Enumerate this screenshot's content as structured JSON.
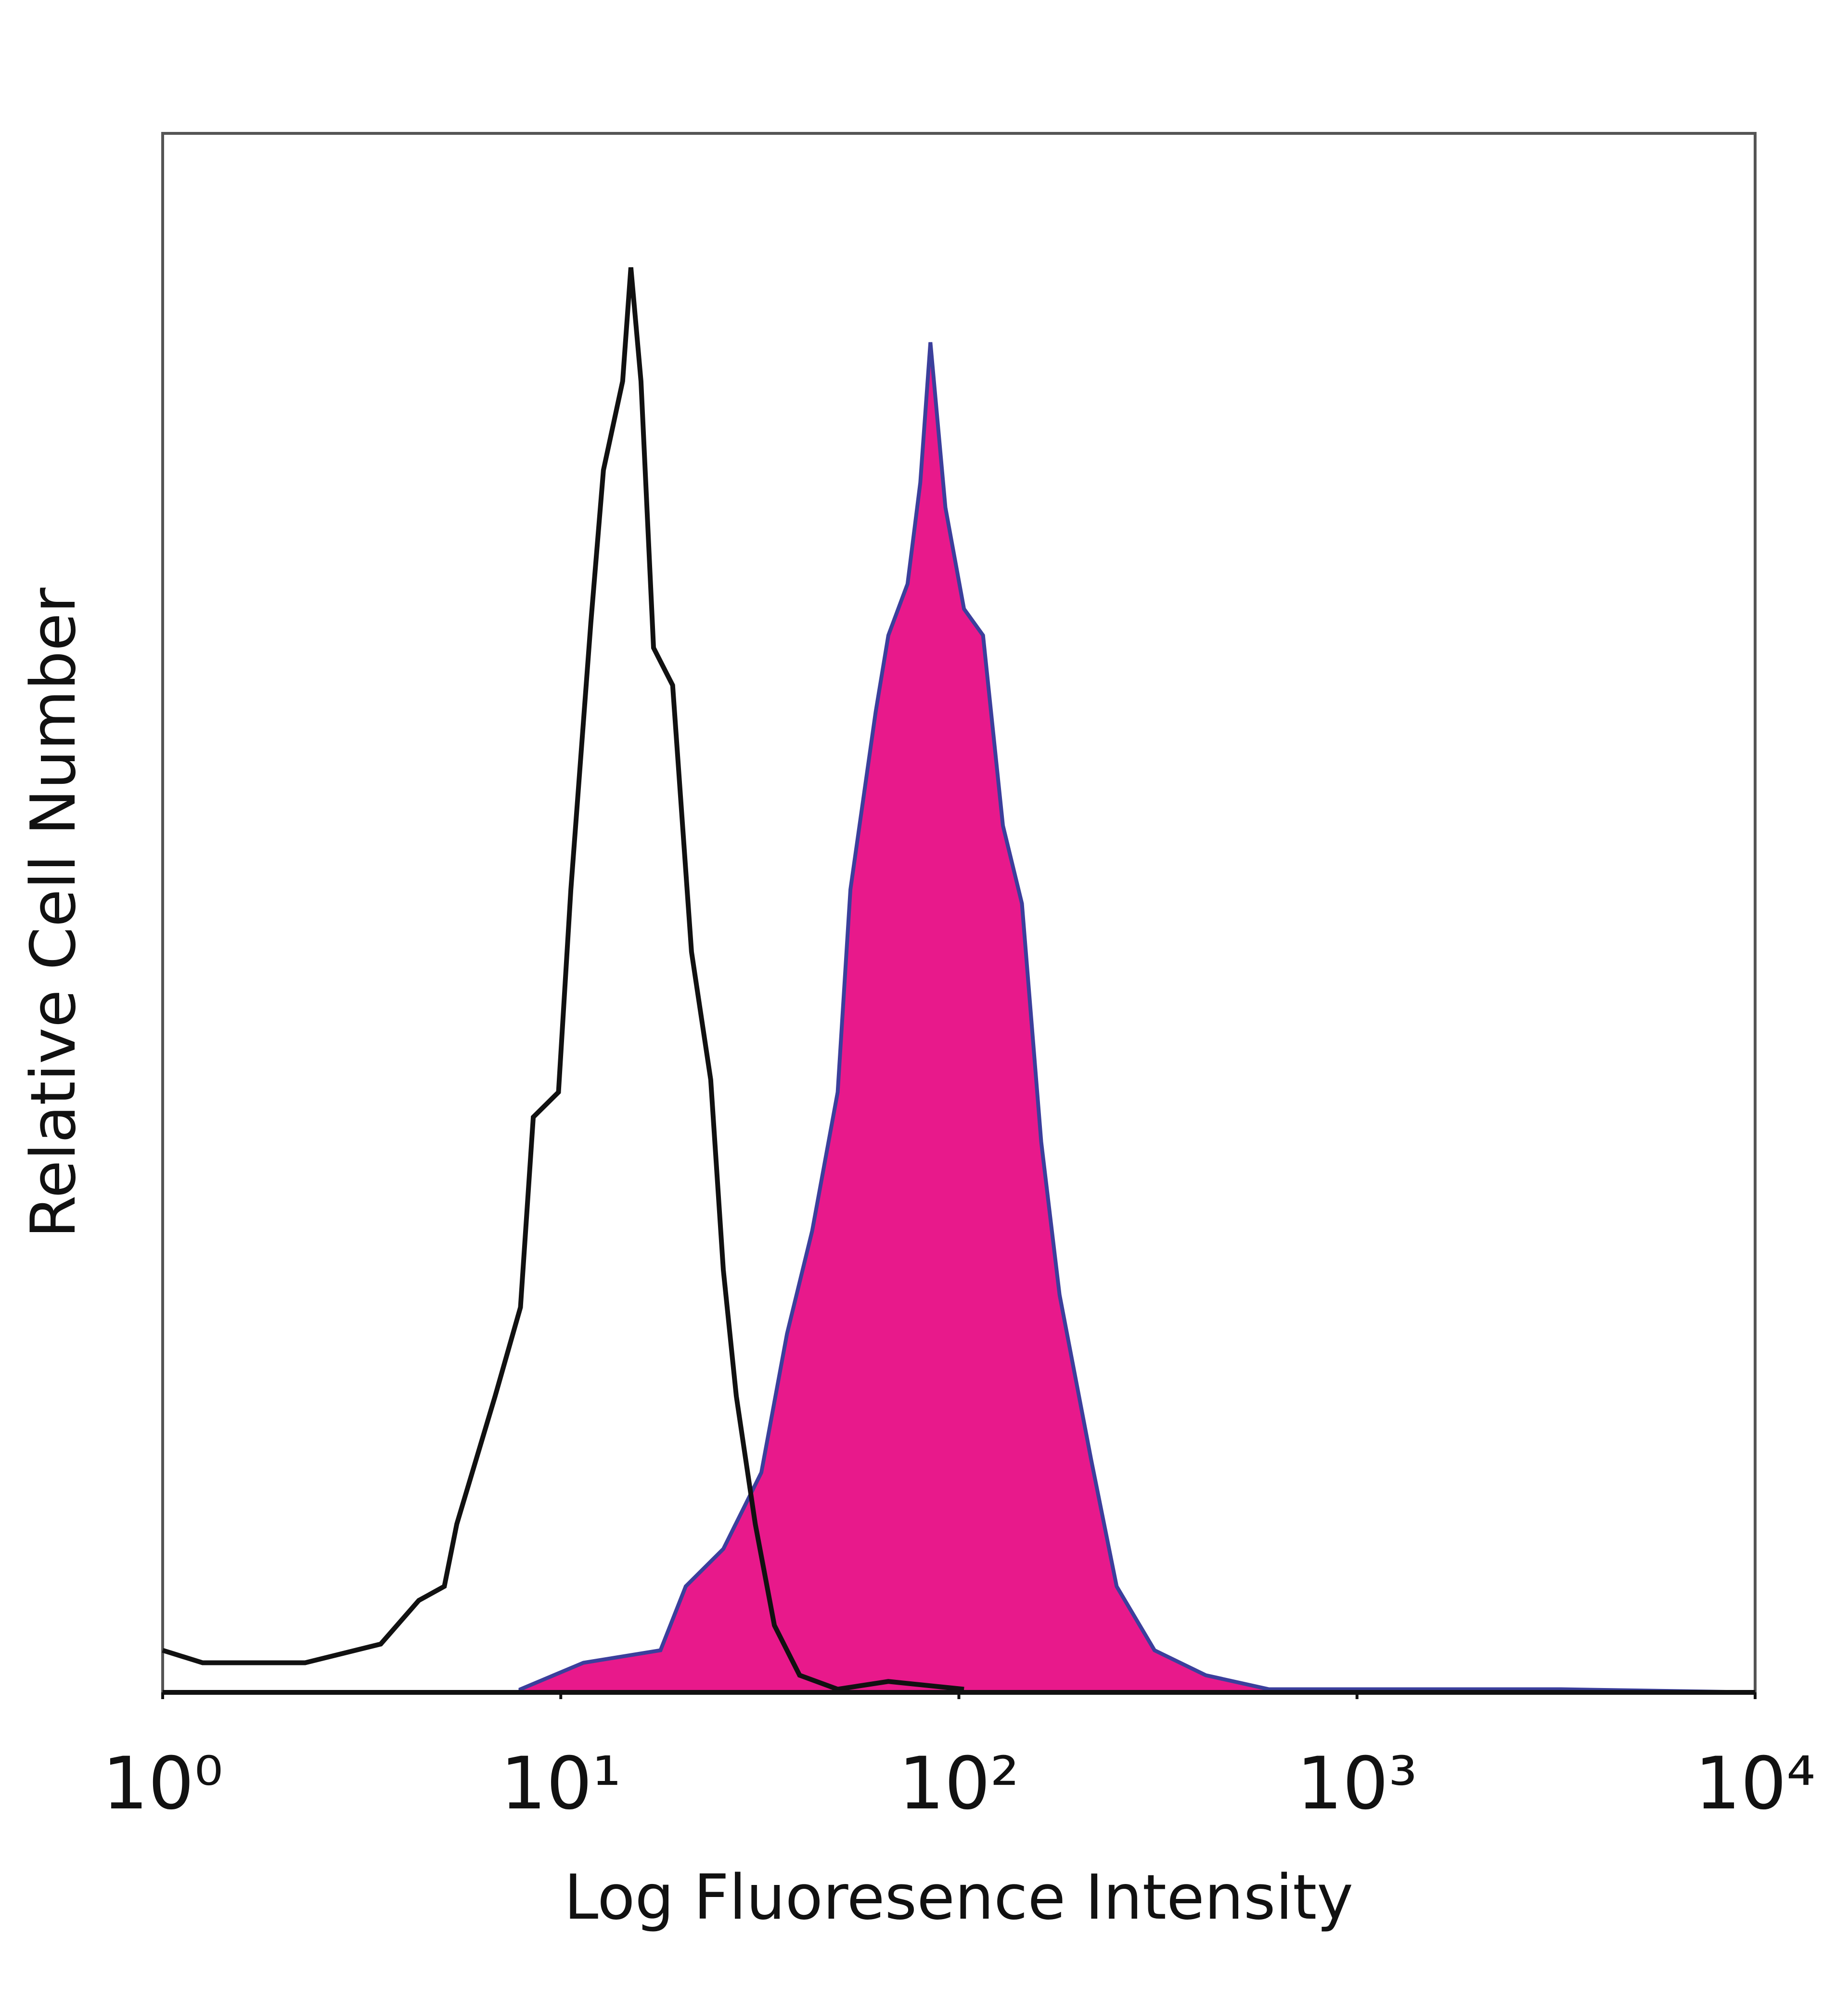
{
  "chart_data": {
    "type": "line",
    "x_label": "Log Fluoresence Intensity",
    "y_label": "Relative Cell Number",
    "xscale": "log",
    "xlim": [
      1,
      10000
    ],
    "ylim": [
      0,
      100
    ],
    "xticks": [
      {
        "value": 1,
        "label": "10⁰"
      },
      {
        "value": 10,
        "label": "10¹"
      },
      {
        "value": 100,
        "label": "10²"
      },
      {
        "value": 1000,
        "label": "10³"
      },
      {
        "value": 10000,
        "label": "10⁴"
      }
    ],
    "series": [
      {
        "color": "#e8198b",
        "edge_color": "#3b3f9c",
        "fill": true,
        "x": [
          7.92,
          11.4,
          17.8,
          20.6,
          25.6,
          31.9,
          37.0,
          42.8,
          49.6,
          53.4,
          61.8,
          66.5,
          74.3,
          80.0,
          84.8,
          92.5,
          103,
          115,
          129,
          144,
          161,
          179,
          215,
          249,
          310,
          417,
          601,
          3250,
          10000
        ],
        "values": [
          0.2,
          1.9,
          2.7,
          6.8,
          9.2,
          14.1,
          23.0,
          29.6,
          38.5,
          51.5,
          62.9,
          67.8,
          71.1,
          77.6,
          86.6,
          76.0,
          69.5,
          67.8,
          55.6,
          50.6,
          35.3,
          25.5,
          14.9,
          6.8,
          2.7,
          1.1,
          0.2,
          0.2,
          0
        ]
      },
      {
        "color": "#111111",
        "fill": false,
        "x": [
          1,
          1.26,
          2.28,
          3.53,
          4.4,
          5.1,
          5.48,
          6.84,
          7.92,
          8.53,
          9.87,
          10.6,
          11.9,
          12.8,
          14.3,
          15.0,
          15.9,
          17.1,
          19.1,
          21.3,
          23.8,
          25.6,
          27.6,
          30.8,
          34.4,
          39.8,
          49.6,
          66.5,
          103
        ],
        "values": [
          2.7,
          1.9,
          1.9,
          3.1,
          5.9,
          6.8,
          10.8,
          19.0,
          24.7,
          36.9,
          38.5,
          51.5,
          68.6,
          78.4,
          84.1,
          91.4,
          84.1,
          67.0,
          64.6,
          47.5,
          39.3,
          27.1,
          19.0,
          10.8,
          4.3,
          1.1,
          0.2,
          0.7,
          0.2
        ]
      }
    ]
  }
}
